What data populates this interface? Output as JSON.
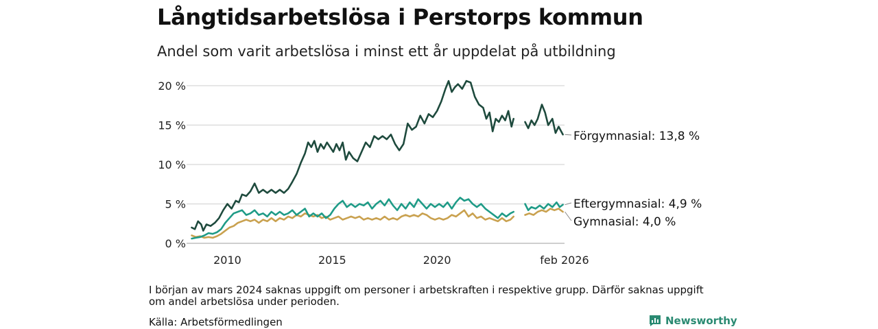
{
  "title": "Långtidsarbetslösa i Perstorps kommun",
  "subtitle": "Andel som varit arbetslösa i minst ett år uppdelat på utbildning",
  "note": "I början av mars 2024 saknas uppgift om personer i arbetskraften i respektive grupp. Därför saknas uppgift om andel arbetslösa under perioden.",
  "source": "Källa: Arbetsförmedlingen",
  "brand": "Newsworthy",
  "chart_data": {
    "type": "line",
    "title": "Långtidsarbetslösa i Perstorps kommun",
    "ylabel": "",
    "xlabel": "",
    "ylim": [
      0,
      20
    ],
    "xlim": [
      2008.25,
      2026.08
    ],
    "y_ticks": [
      0,
      5,
      10,
      15,
      20
    ],
    "y_tick_labels": [
      "0 %",
      "5 %",
      "10 %",
      "15 %",
      "20 %"
    ],
    "x_ticks": [
      2010,
      2015,
      2020,
      2026.08
    ],
    "x_tick_labels": [
      "2010",
      "2015",
      "2020",
      "feb 2026"
    ],
    "gap": [
      2023.7,
      2024.15
    ],
    "series": [
      {
        "name": "Förgymnasial",
        "label": "Förgymnasial: 13,8 %",
        "color": "#1e4a3d",
        "points": [
          [
            2008.3,
            2.0
          ],
          [
            2008.45,
            1.8
          ],
          [
            2008.6,
            2.8
          ],
          [
            2008.75,
            2.4
          ],
          [
            2008.85,
            1.6
          ],
          [
            2009.0,
            2.4
          ],
          [
            2009.2,
            2.2
          ],
          [
            2009.4,
            2.6
          ],
          [
            2009.6,
            3.2
          ],
          [
            2009.8,
            4.2
          ],
          [
            2010.0,
            5.0
          ],
          [
            2010.2,
            4.4
          ],
          [
            2010.4,
            5.4
          ],
          [
            2010.55,
            5.2
          ],
          [
            2010.7,
            6.2
          ],
          [
            2010.9,
            6.0
          ],
          [
            2011.1,
            6.6
          ],
          [
            2011.3,
            7.6
          ],
          [
            2011.5,
            6.4
          ],
          [
            2011.7,
            6.8
          ],
          [
            2011.9,
            6.4
          ],
          [
            2012.1,
            6.8
          ],
          [
            2012.3,
            6.4
          ],
          [
            2012.5,
            6.8
          ],
          [
            2012.7,
            6.4
          ],
          [
            2012.9,
            6.9
          ],
          [
            2013.1,
            7.8
          ],
          [
            2013.3,
            8.8
          ],
          [
            2013.5,
            10.2
          ],
          [
            2013.7,
            11.4
          ],
          [
            2013.85,
            12.8
          ],
          [
            2014.0,
            12.2
          ],
          [
            2014.15,
            13.0
          ],
          [
            2014.3,
            11.6
          ],
          [
            2014.45,
            12.6
          ],
          [
            2014.6,
            12.0
          ],
          [
            2014.75,
            12.8
          ],
          [
            2014.9,
            12.2
          ],
          [
            2015.05,
            11.6
          ],
          [
            2015.2,
            12.6
          ],
          [
            2015.35,
            11.8
          ],
          [
            2015.5,
            12.8
          ],
          [
            2015.65,
            10.6
          ],
          [
            2015.8,
            11.6
          ],
          [
            2016.0,
            10.8
          ],
          [
            2016.2,
            10.4
          ],
          [
            2016.4,
            11.6
          ],
          [
            2016.6,
            12.8
          ],
          [
            2016.8,
            12.2
          ],
          [
            2017.0,
            13.6
          ],
          [
            2017.2,
            13.2
          ],
          [
            2017.4,
            13.6
          ],
          [
            2017.6,
            13.2
          ],
          [
            2017.8,
            13.8
          ],
          [
            2018.0,
            12.6
          ],
          [
            2018.2,
            11.8
          ],
          [
            2018.4,
            12.6
          ],
          [
            2018.6,
            15.2
          ],
          [
            2018.8,
            14.4
          ],
          [
            2019.0,
            14.8
          ],
          [
            2019.2,
            16.2
          ],
          [
            2019.4,
            15.2
          ],
          [
            2019.6,
            16.4
          ],
          [
            2019.8,
            16.0
          ],
          [
            2020.0,
            16.8
          ],
          [
            2020.2,
            18.0
          ],
          [
            2020.4,
            19.6
          ],
          [
            2020.55,
            20.6
          ],
          [
            2020.7,
            19.2
          ],
          [
            2020.85,
            19.8
          ],
          [
            2021.0,
            20.2
          ],
          [
            2021.2,
            19.6
          ],
          [
            2021.4,
            20.6
          ],
          [
            2021.6,
            20.4
          ],
          [
            2021.8,
            18.6
          ],
          [
            2022.0,
            17.6
          ],
          [
            2022.2,
            17.2
          ],
          [
            2022.35,
            15.8
          ],
          [
            2022.5,
            16.6
          ],
          [
            2022.65,
            14.2
          ],
          [
            2022.8,
            15.8
          ],
          [
            2022.95,
            15.4
          ],
          [
            2023.1,
            16.2
          ],
          [
            2023.25,
            15.6
          ],
          [
            2023.4,
            16.8
          ],
          [
            2023.55,
            14.8
          ],
          [
            2023.65,
            15.8
          ]
        ],
        "points_after_gap": [
          [
            2024.2,
            15.4
          ],
          [
            2024.35,
            14.6
          ],
          [
            2024.5,
            15.6
          ],
          [
            2024.65,
            15.0
          ],
          [
            2024.8,
            15.8
          ],
          [
            2025.0,
            17.6
          ],
          [
            2025.15,
            16.6
          ],
          [
            2025.3,
            15.0
          ],
          [
            2025.5,
            15.8
          ],
          [
            2025.65,
            14.0
          ],
          [
            2025.8,
            14.8
          ],
          [
            2026.0,
            13.8
          ]
        ]
      },
      {
        "name": "Eftergymnasial",
        "label": "Eftergymnasial:  4,9 %",
        "color": "#1f9b87",
        "points": [
          [
            2008.3,
            0.6
          ],
          [
            2008.5,
            0.7
          ],
          [
            2008.7,
            0.8
          ],
          [
            2008.9,
            1.0
          ],
          [
            2009.1,
            1.3
          ],
          [
            2009.3,
            1.2
          ],
          [
            2009.5,
            1.4
          ],
          [
            2009.7,
            1.8
          ],
          [
            2009.9,
            2.6
          ],
          [
            2010.1,
            3.2
          ],
          [
            2010.3,
            3.8
          ],
          [
            2010.5,
            4.0
          ],
          [
            2010.7,
            4.2
          ],
          [
            2010.9,
            3.6
          ],
          [
            2011.1,
            3.8
          ],
          [
            2011.3,
            4.2
          ],
          [
            2011.5,
            3.6
          ],
          [
            2011.7,
            3.8
          ],
          [
            2011.9,
            3.4
          ],
          [
            2012.1,
            4.0
          ],
          [
            2012.3,
            3.6
          ],
          [
            2012.5,
            4.0
          ],
          [
            2012.7,
            3.6
          ],
          [
            2012.9,
            3.8
          ],
          [
            2013.1,
            4.2
          ],
          [
            2013.3,
            3.6
          ],
          [
            2013.5,
            4.0
          ],
          [
            2013.7,
            4.4
          ],
          [
            2013.9,
            3.4
          ],
          [
            2014.1,
            3.8
          ],
          [
            2014.3,
            3.4
          ],
          [
            2014.5,
            3.8
          ],
          [
            2014.7,
            3.2
          ],
          [
            2014.9,
            3.6
          ],
          [
            2015.1,
            4.4
          ],
          [
            2015.3,
            5.0
          ],
          [
            2015.5,
            5.4
          ],
          [
            2015.7,
            4.6
          ],
          [
            2015.9,
            5.0
          ],
          [
            2016.1,
            4.6
          ],
          [
            2016.3,
            5.0
          ],
          [
            2016.5,
            4.8
          ],
          [
            2016.7,
            5.2
          ],
          [
            2016.9,
            4.4
          ],
          [
            2017.1,
            5.0
          ],
          [
            2017.3,
            5.4
          ],
          [
            2017.5,
            4.8
          ],
          [
            2017.7,
            5.6
          ],
          [
            2017.9,
            4.8
          ],
          [
            2018.1,
            4.2
          ],
          [
            2018.3,
            5.0
          ],
          [
            2018.5,
            4.4
          ],
          [
            2018.7,
            5.2
          ],
          [
            2018.9,
            4.6
          ],
          [
            2019.1,
            5.6
          ],
          [
            2019.3,
            5.0
          ],
          [
            2019.5,
            4.4
          ],
          [
            2019.7,
            5.0
          ],
          [
            2019.9,
            4.6
          ],
          [
            2020.1,
            5.0
          ],
          [
            2020.3,
            4.6
          ],
          [
            2020.5,
            5.2
          ],
          [
            2020.7,
            4.4
          ],
          [
            2020.9,
            5.2
          ],
          [
            2021.1,
            5.8
          ],
          [
            2021.3,
            5.4
          ],
          [
            2021.5,
            5.6
          ],
          [
            2021.7,
            5.0
          ],
          [
            2021.9,
            4.6
          ],
          [
            2022.1,
            5.0
          ],
          [
            2022.3,
            4.4
          ],
          [
            2022.5,
            4.0
          ],
          [
            2022.7,
            3.6
          ],
          [
            2022.9,
            3.2
          ],
          [
            2023.1,
            3.8
          ],
          [
            2023.3,
            3.4
          ],
          [
            2023.5,
            3.8
          ],
          [
            2023.65,
            4.0
          ]
        ],
        "points_after_gap": [
          [
            2024.2,
            5.0
          ],
          [
            2024.35,
            4.2
          ],
          [
            2024.5,
            4.6
          ],
          [
            2024.7,
            4.4
          ],
          [
            2024.9,
            4.8
          ],
          [
            2025.1,
            4.4
          ],
          [
            2025.3,
            5.0
          ],
          [
            2025.5,
            4.6
          ],
          [
            2025.7,
            5.2
          ],
          [
            2025.85,
            4.6
          ],
          [
            2026.0,
            4.9
          ]
        ]
      },
      {
        "name": "Gymnasial",
        "label": "Gymnasial:  4,0 %",
        "color": "#c9a14f",
        "points": [
          [
            2008.3,
            1.0
          ],
          [
            2008.5,
            0.8
          ],
          [
            2008.7,
            0.9
          ],
          [
            2008.9,
            0.7
          ],
          [
            2009.1,
            0.8
          ],
          [
            2009.3,
            0.7
          ],
          [
            2009.5,
            0.9
          ],
          [
            2009.7,
            1.2
          ],
          [
            2009.9,
            1.6
          ],
          [
            2010.1,
            2.0
          ],
          [
            2010.3,
            2.2
          ],
          [
            2010.5,
            2.6
          ],
          [
            2010.7,
            2.8
          ],
          [
            2010.9,
            3.0
          ],
          [
            2011.1,
            2.8
          ],
          [
            2011.3,
            3.0
          ],
          [
            2011.5,
            2.6
          ],
          [
            2011.7,
            3.0
          ],
          [
            2011.9,
            2.8
          ],
          [
            2012.1,
            3.2
          ],
          [
            2012.3,
            2.8
          ],
          [
            2012.5,
            3.2
          ],
          [
            2012.7,
            3.0
          ],
          [
            2012.9,
            3.4
          ],
          [
            2013.1,
            3.2
          ],
          [
            2013.3,
            3.6
          ],
          [
            2013.5,
            3.4
          ],
          [
            2013.7,
            3.8
          ],
          [
            2013.9,
            3.6
          ],
          [
            2014.1,
            3.4
          ],
          [
            2014.3,
            3.6
          ],
          [
            2014.5,
            3.2
          ],
          [
            2014.7,
            3.4
          ],
          [
            2014.9,
            3.0
          ],
          [
            2015.1,
            3.2
          ],
          [
            2015.3,
            3.4
          ],
          [
            2015.5,
            3.0
          ],
          [
            2015.7,
            3.2
          ],
          [
            2015.9,
            3.4
          ],
          [
            2016.1,
            3.2
          ],
          [
            2016.3,
            3.4
          ],
          [
            2016.5,
            3.0
          ],
          [
            2016.7,
            3.2
          ],
          [
            2016.9,
            3.0
          ],
          [
            2017.1,
            3.2
          ],
          [
            2017.3,
            3.0
          ],
          [
            2017.5,
            3.4
          ],
          [
            2017.7,
            3.0
          ],
          [
            2017.9,
            3.2
          ],
          [
            2018.1,
            3.0
          ],
          [
            2018.3,
            3.4
          ],
          [
            2018.5,
            3.6
          ],
          [
            2018.7,
            3.4
          ],
          [
            2018.9,
            3.6
          ],
          [
            2019.1,
            3.4
          ],
          [
            2019.3,
            3.8
          ],
          [
            2019.5,
            3.6
          ],
          [
            2019.7,
            3.2
          ],
          [
            2019.9,
            3.0
          ],
          [
            2020.1,
            3.2
          ],
          [
            2020.3,
            3.0
          ],
          [
            2020.5,
            3.2
          ],
          [
            2020.7,
            3.6
          ],
          [
            2020.9,
            3.4
          ],
          [
            2021.1,
            3.8
          ],
          [
            2021.3,
            4.2
          ],
          [
            2021.5,
            3.4
          ],
          [
            2021.7,
            3.8
          ],
          [
            2021.9,
            3.2
          ],
          [
            2022.1,
            3.4
          ],
          [
            2022.3,
            3.0
          ],
          [
            2022.5,
            3.2
          ],
          [
            2022.7,
            3.0
          ],
          [
            2022.9,
            2.8
          ],
          [
            2023.1,
            3.2
          ],
          [
            2023.3,
            2.8
          ],
          [
            2023.5,
            3.0
          ],
          [
            2023.65,
            3.4
          ]
        ],
        "points_after_gap": [
          [
            2024.2,
            3.6
          ],
          [
            2024.4,
            3.8
          ],
          [
            2024.6,
            3.6
          ],
          [
            2024.8,
            4.0
          ],
          [
            2025.0,
            4.2
          ],
          [
            2025.2,
            4.0
          ],
          [
            2025.4,
            4.4
          ],
          [
            2025.6,
            4.2
          ],
          [
            2025.8,
            4.4
          ],
          [
            2026.0,
            4.0
          ]
        ]
      }
    ]
  }
}
